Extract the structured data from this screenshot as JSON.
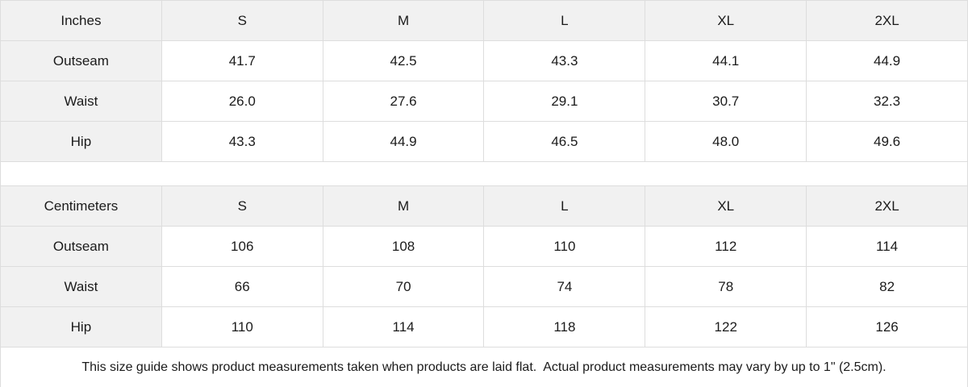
{
  "chart_data": [
    {
      "type": "table",
      "unit": "Inches",
      "columns": [
        "Inches",
        "S",
        "M",
        "L",
        "XL",
        "2XL"
      ],
      "rows": [
        [
          "Outseam",
          "41.7",
          "42.5",
          "43.3",
          "44.1",
          "44.9"
        ],
        [
          "Waist",
          "26.0",
          "27.6",
          "29.1",
          "30.7",
          "32.3"
        ],
        [
          "Hip",
          "43.3",
          "44.9",
          "46.5",
          "48.0",
          "49.6"
        ]
      ]
    },
    {
      "type": "table",
      "unit": "Centimeters",
      "columns": [
        "Centimeters",
        "S",
        "M",
        "L",
        "XL",
        "2XL"
      ],
      "rows": [
        [
          "Outseam",
          "106",
          "108",
          "110",
          "112",
          "114"
        ],
        [
          "Waist",
          "66",
          "70",
          "74",
          "78",
          "82"
        ],
        [
          "Hip",
          "110",
          "114",
          "118",
          "122",
          "126"
        ]
      ]
    }
  ],
  "footer_note": "This size guide shows product measurements taken when products are laid flat.  Actual product measurements may vary by up to 1\" (2.5cm).",
  "colors": {
    "header_bg": "#f1f1f1",
    "border": "#dddddd",
    "text": "#1b1b1b",
    "background": "#ffffff"
  }
}
